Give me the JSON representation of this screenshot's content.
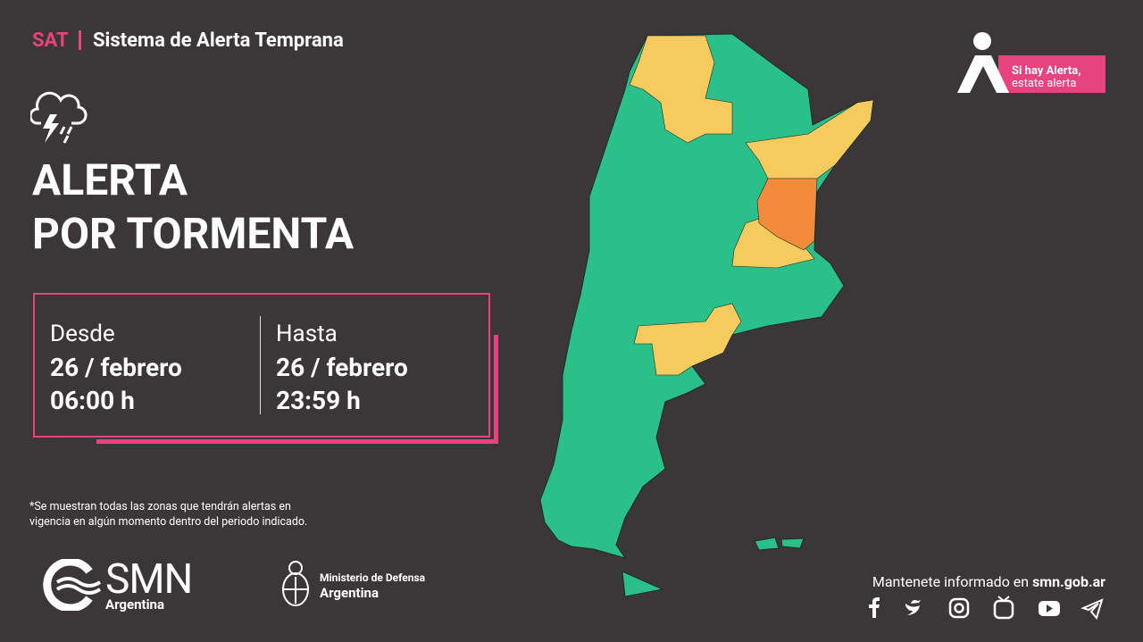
{
  "header": {
    "tag": "SAT",
    "title": "Sistema de Alerta Temprana"
  },
  "alert": {
    "line1": "ALERTA",
    "line2": "POR TORMENTA"
  },
  "period": {
    "from": {
      "label": "Desde",
      "date": "26 / febrero",
      "time": "06:00 h"
    },
    "to": {
      "label": "Hasta",
      "date": "26 / febrero",
      "time": "23:59 h"
    }
  },
  "footnote": [
    "*Se muestran todas las zonas que tendrán alertas en",
    "vigencia en algún momento dentro del periodo indicado."
  ],
  "badge": {
    "line1": "Si hay Alerta,",
    "line2": "estate alerta"
  },
  "logos": {
    "smn": "SMN",
    "smn_country": "Argentina",
    "ministry": "Ministerio de Defensa",
    "ministry_country": "Argentina"
  },
  "footer": {
    "text": "Mantenete informado en ",
    "url": "smn.gob.ar"
  }
}
